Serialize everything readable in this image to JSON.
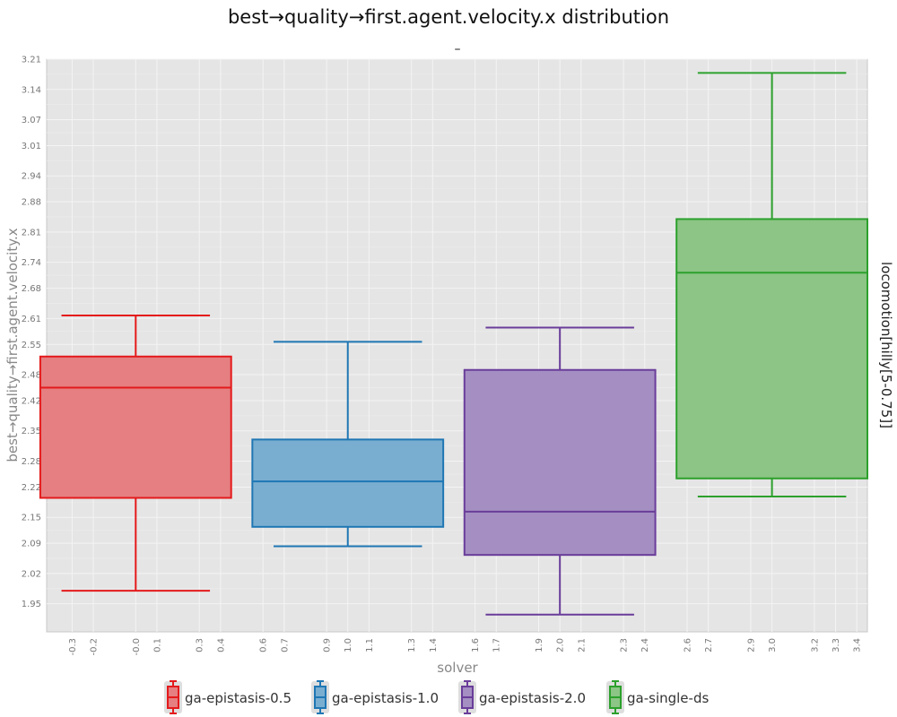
{
  "chart_data": {
    "type": "box",
    "title": "best→quality→first.agent.velocity.x distribution",
    "subtitle": "–",
    "xlabel": "solver",
    "ylabel": "best→quality→first.agent.velocity.x",
    "facet_label": "locomotion[hilly[5-0.75]]",
    "ylim": [
      1.885,
      3.21
    ],
    "xlim": [
      -0.42,
      3.45
    ],
    "y_ticks": [
      "1.95",
      "2.02",
      "2.09",
      "2.15",
      "2.22",
      "2.28",
      "2.35",
      "2.42",
      "2.48",
      "2.55",
      "2.61",
      "2.68",
      "2.74",
      "2.81",
      "2.88",
      "2.94",
      "3.01",
      "3.07",
      "3.14",
      "3.21"
    ],
    "x_ticks": [
      "-0.3",
      "-0.2",
      "-0.0",
      "0.1",
      "0.3",
      "0.4",
      "0.6",
      "0.7",
      "0.9",
      "1.0",
      "1.1",
      "1.3",
      "1.4",
      "1.6",
      "1.7",
      "1.9",
      "2.0",
      "2.1",
      "2.3",
      "2.4",
      "2.6",
      "2.7",
      "2.9",
      "3.0",
      "3.2",
      "3.3",
      "3.4"
    ],
    "grid": true,
    "legend_position": "bottom",
    "series": [
      {
        "name": "ga-epistasis-0.5",
        "color": "#e41a1c",
        "fill": "#e57f81",
        "position": 0,
        "whisker_low": 1.98,
        "q1": 2.195,
        "median": 2.45,
        "q3": 2.522,
        "whisker_high": 2.617
      },
      {
        "name": "ga-epistasis-1.0",
        "color": "#1f77b4",
        "fill": "#7aaed0",
        "position": 1,
        "whisker_low": 2.083,
        "q1": 2.128,
        "median": 2.233,
        "q3": 2.33,
        "whisker_high": 2.556
      },
      {
        "name": "ga-epistasis-2.0",
        "color": "#6a3d9a",
        "fill": "#a58fc2",
        "position": 2,
        "whisker_low": 1.925,
        "q1": 2.063,
        "median": 2.163,
        "q3": 2.491,
        "whisker_high": 2.589
      },
      {
        "name": "ga-single-ds",
        "color": "#2ca02c",
        "fill": "#8cc585",
        "position": 3,
        "whisker_low": 2.198,
        "q1": 2.24,
        "median": 2.716,
        "q3": 2.84,
        "whisker_high": 3.178
      }
    ]
  }
}
